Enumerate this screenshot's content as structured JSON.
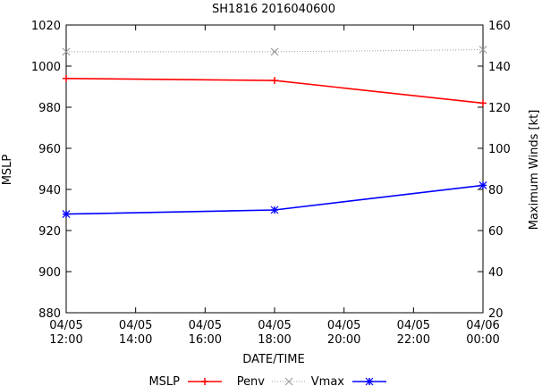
{
  "chart_data": {
    "type": "line",
    "title": "SH1816 2016040600",
    "xlabel": "DATE/TIME",
    "ylabel": "MSLP",
    "y2label": "Maximum Winds [kt]",
    "x_ticks": [
      {
        "hour": 0,
        "line1": "04/05",
        "line2": "12:00"
      },
      {
        "hour": 2,
        "line1": "04/05",
        "line2": "14:00"
      },
      {
        "hour": 4,
        "line1": "04/05",
        "line2": "16:00"
      },
      {
        "hour": 6,
        "line1": "04/05",
        "line2": "18:00"
      },
      {
        "hour": 8,
        "line1": "04/05",
        "line2": "20:00"
      },
      {
        "hour": 10,
        "line1": "04/05",
        "line2": "22:00"
      },
      {
        "hour": 12,
        "line1": "04/06",
        "line2": "00:00"
      }
    ],
    "xlim": [
      0,
      12
    ],
    "ylim": [
      880,
      1020
    ],
    "y_ticks": [
      880,
      900,
      920,
      940,
      960,
      980,
      1000,
      1020
    ],
    "y2lim": [
      20,
      160
    ],
    "y2_ticks": [
      20,
      40,
      60,
      80,
      100,
      120,
      140,
      160
    ],
    "grid": false,
    "legend_position": "bottom",
    "series": [
      {
        "name": "MSLP",
        "axis": "y1",
        "color": "#ff0000",
        "marker": "plus",
        "style": "solid",
        "points": [
          {
            "hour": 0,
            "value": 994
          },
          {
            "hour": 6,
            "value": 993
          },
          {
            "hour": 12,
            "value": 982
          }
        ]
      },
      {
        "name": "Penv",
        "axis": "y1",
        "color": "#a0a0a0",
        "marker": "cross",
        "style": "dotted",
        "points": [
          {
            "hour": 0,
            "value": 1007
          },
          {
            "hour": 6,
            "value": 1007
          },
          {
            "hour": 12,
            "value": 1008
          }
        ]
      },
      {
        "name": "Vmax",
        "axis": "y2",
        "color": "#0000ff",
        "marker": "star",
        "style": "solid",
        "points": [
          {
            "hour": 0,
            "value": 68
          },
          {
            "hour": 6,
            "value": 70
          },
          {
            "hour": 12,
            "value": 82
          }
        ]
      }
    ]
  }
}
